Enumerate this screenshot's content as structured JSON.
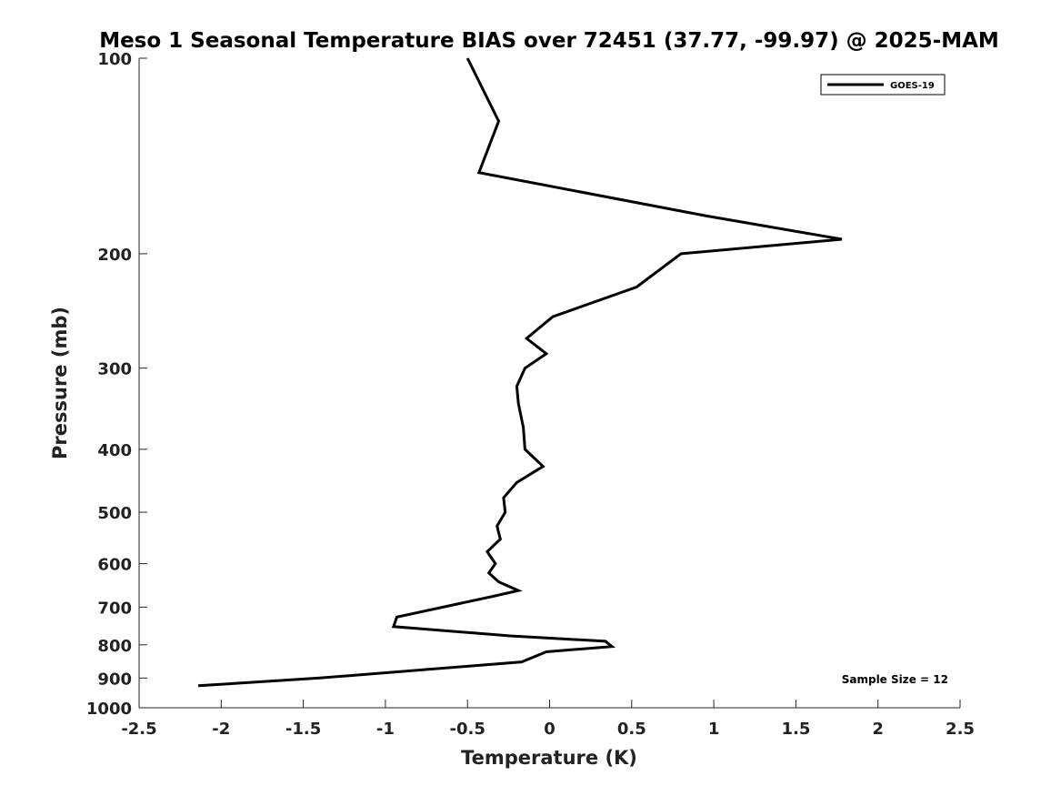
{
  "chart_data": {
    "type": "line",
    "title": "Meso 1 Seasonal Temperature BIAS over 72451 (37.77, -99.97) @ 2025-MAM",
    "xlabel": "Temperature (K)",
    "ylabel": "Pressure (mb)",
    "xlim": [
      -2.5,
      2.5
    ],
    "ylim": [
      1000,
      100
    ],
    "yscale": "log",
    "y_reversed": true,
    "x_ticks": [
      -2.5,
      -2,
      -1.5,
      -1,
      -0.5,
      0,
      0.5,
      1,
      1.5,
      2,
      2.5
    ],
    "x_tick_labels": [
      "-2.5",
      "-2",
      "-1.5",
      "-1",
      "-0.5",
      "0",
      "0.5",
      "1",
      "1.5",
      "2",
      "2.5"
    ],
    "y_ticks": [
      100,
      200,
      300,
      400,
      500,
      600,
      700,
      800,
      900,
      1000
    ],
    "y_tick_labels": [
      "100",
      "200",
      "300",
      "400",
      "500",
      "600",
      "700",
      "800",
      "900",
      "1000"
    ],
    "grid": false,
    "legend_position": "top-right",
    "series": [
      {
        "name": "GOES-19",
        "color": "#000000",
        "points": [
          {
            "t": -0.5,
            "p": 100
          },
          {
            "t": -0.31,
            "p": 125
          },
          {
            "t": -0.43,
            "p": 150
          },
          {
            "t": 0.96,
            "p": 175
          },
          {
            "t": 1.78,
            "p": 190
          },
          {
            "t": 0.8,
            "p": 200
          },
          {
            "t": 0.53,
            "p": 225
          },
          {
            "t": 0.02,
            "p": 250
          },
          {
            "t": -0.14,
            "p": 270
          },
          {
            "t": -0.02,
            "p": 285
          },
          {
            "t": -0.15,
            "p": 300
          },
          {
            "t": -0.2,
            "p": 320
          },
          {
            "t": -0.19,
            "p": 340
          },
          {
            "t": -0.16,
            "p": 370
          },
          {
            "t": -0.15,
            "p": 400
          },
          {
            "t": -0.04,
            "p": 425
          },
          {
            "t": -0.2,
            "p": 450
          },
          {
            "t": -0.28,
            "p": 475
          },
          {
            "t": -0.27,
            "p": 500
          },
          {
            "t": -0.32,
            "p": 525
          },
          {
            "t": -0.3,
            "p": 550
          },
          {
            "t": -0.38,
            "p": 575
          },
          {
            "t": -0.33,
            "p": 600
          },
          {
            "t": -0.37,
            "p": 620
          },
          {
            "t": -0.31,
            "p": 640
          },
          {
            "t": -0.19,
            "p": 660
          },
          {
            "t": -0.36,
            "p": 675
          },
          {
            "t": -0.93,
            "p": 725
          },
          {
            "t": -0.95,
            "p": 750
          },
          {
            "t": -0.24,
            "p": 775
          },
          {
            "t": 0.34,
            "p": 790
          },
          {
            "t": 0.38,
            "p": 805
          },
          {
            "t": -0.02,
            "p": 820
          },
          {
            "t": -0.17,
            "p": 850
          },
          {
            "t": -1.4,
            "p": 900
          },
          {
            "t": -2.14,
            "p": 925
          }
        ]
      }
    ],
    "annotations": [
      "Sample Size = 12"
    ]
  }
}
